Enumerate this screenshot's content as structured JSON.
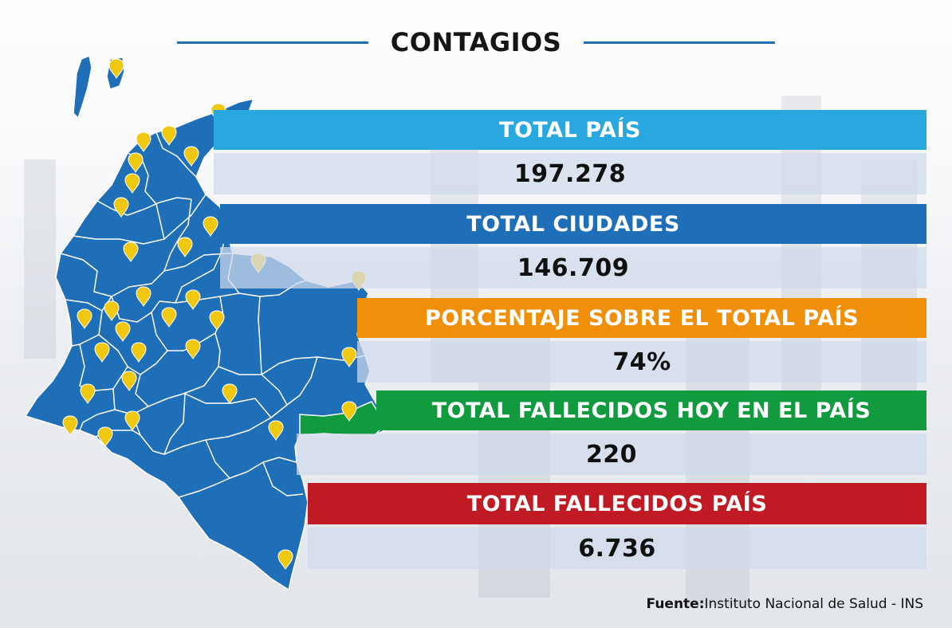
{
  "title": "CONTAGIOS",
  "stats": [
    {
      "label": "TOTAL PAÍS",
      "value": "197.278",
      "color": "#29a8e0"
    },
    {
      "label": "TOTAL CIUDADES",
      "value": "146.709",
      "color": "#1f6fb8"
    },
    {
      "label": "PORCENTAJE SOBRE EL TOTAL PAÍS",
      "value": "74%",
      "color": "#f0900a"
    },
    {
      "label": "TOTAL FALLECIDOS HOY EN EL PAÍS",
      "value": "220",
      "color": "#129a3e"
    },
    {
      "label": "TOTAL FALLECIDOS PAÍS",
      "value": "6.736",
      "color": "#c01a24"
    }
  ],
  "source": {
    "prefix": "Fuente:",
    "text": "Instituto Nacional de Salud - INS"
  },
  "map": {
    "fill": "#1f6fb8",
    "border": "#ffffff",
    "pin_color": "#f1c811",
    "icon": "location-pin-icon"
  }
}
